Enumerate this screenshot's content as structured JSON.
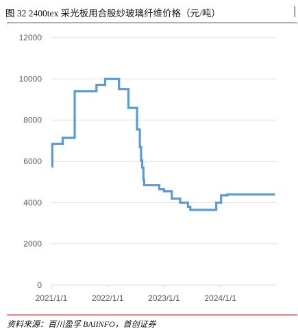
{
  "figure": {
    "title": "图  32 2400tex 采光板用合股纱玻璃纤维价格（元/吨）",
    "source": "资料来源：百川盈孚 BAIINFO，首创证券"
  },
  "colors": {
    "line": "#5b9bd5",
    "rule": "#c00000",
    "grid": "#d9d9d9",
    "axis_text": "#595959"
  },
  "chart_data": {
    "type": "line",
    "title": "",
    "xlabel": "",
    "ylabel": "",
    "ylim": [
      0,
      12000
    ],
    "yticks": [
      0,
      2000,
      4000,
      6000,
      8000,
      10000,
      12000
    ],
    "ytick_labels": [
      "0",
      "2000",
      "4000",
      "6000",
      "8000",
      "10000",
      "12000"
    ],
    "xlim": [
      "2021-01-01",
      "2024-12-31"
    ],
    "xticks": [
      "2021-01-01",
      "2022-01-01",
      "2023-01-01",
      "2024-01-01"
    ],
    "xtick_labels": [
      "2021/1/1",
      "2022/1/1",
      "2023/1/1",
      "2024/1/1"
    ],
    "grid": true,
    "legend": "none",
    "step": true,
    "series": [
      {
        "name": "",
        "color": "#5b9bd5",
        "points": [
          [
            "2021-01-04",
            5750
          ],
          [
            "2021-01-07",
            6850
          ],
          [
            "2021-03-15",
            7150
          ],
          [
            "2021-06-01",
            9400
          ],
          [
            "2021-10-20",
            9700
          ],
          [
            "2021-12-15",
            10000
          ],
          [
            "2022-03-15",
            9500
          ],
          [
            "2022-05-15",
            8600
          ],
          [
            "2022-07-10",
            7550
          ],
          [
            "2022-07-28",
            6700
          ],
          [
            "2022-08-05",
            6050
          ],
          [
            "2022-08-12",
            5700
          ],
          [
            "2022-08-20",
            5100
          ],
          [
            "2022-08-25",
            4850
          ],
          [
            "2022-12-01",
            4650
          ],
          [
            "2023-01-01",
            4550
          ],
          [
            "2023-02-20",
            4200
          ],
          [
            "2023-04-15",
            4000
          ],
          [
            "2023-06-05",
            3800
          ],
          [
            "2023-06-20",
            3650
          ],
          [
            "2023-12-05",
            4000
          ],
          [
            "2024-01-05",
            4350
          ],
          [
            "2024-02-15",
            4400
          ],
          [
            "2024-12-20",
            4400
          ]
        ]
      }
    ]
  }
}
